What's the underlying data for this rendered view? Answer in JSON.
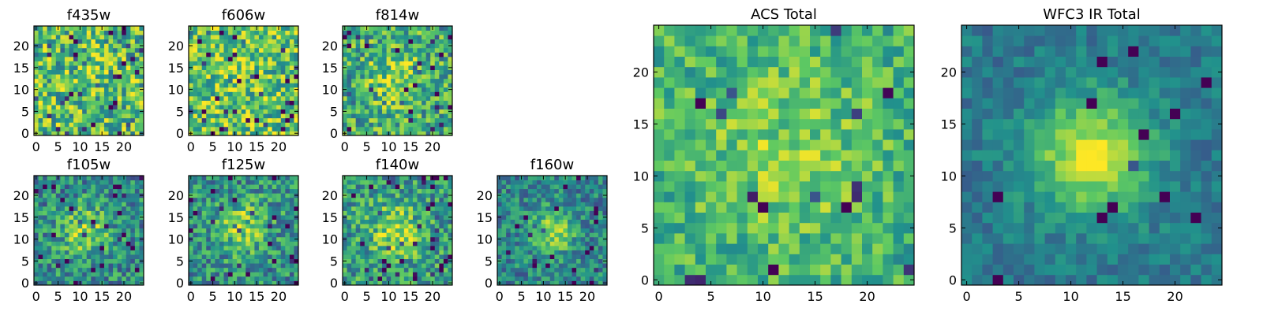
{
  "figure": {
    "background": "#ffffff",
    "colormap": "viridis",
    "colormap_stops": [
      "#440154",
      "#3b528b",
      "#21918c",
      "#5ec962",
      "#fde725"
    ]
  },
  "chart_data": [
    {
      "type": "heatmap",
      "title": "f435w",
      "grid": [
        25,
        25
      ],
      "xlim": [
        0,
        24
      ],
      "ylim": [
        0,
        24
      ],
      "xticks": [
        "0",
        "5",
        "10",
        "15",
        "20"
      ],
      "yticks": [
        "0",
        "5",
        "10",
        "15",
        "20"
      ],
      "intensity": {
        "level": 0.68,
        "noise": 0.32,
        "center": [
          12,
          12
        ],
        "peak": 0.05,
        "spread": 5,
        "dark_pixel_rate": 0.06
      }
    },
    {
      "type": "heatmap",
      "title": "f606w",
      "grid": [
        25,
        25
      ],
      "xlim": [
        0,
        24
      ],
      "ylim": [
        0,
        24
      ],
      "xticks": [
        "0",
        "5",
        "10",
        "15",
        "20"
      ],
      "yticks": [
        "0",
        "5",
        "10",
        "15",
        "20"
      ],
      "intensity": {
        "level": 0.72,
        "noise": 0.3,
        "center": [
          12,
          12
        ],
        "peak": 0.05,
        "spread": 5,
        "dark_pixel_rate": 0.07
      }
    },
    {
      "type": "heatmap",
      "title": "f814w",
      "grid": [
        25,
        25
      ],
      "xlim": [
        0,
        24
      ],
      "ylim": [
        0,
        24
      ],
      "xticks": [
        "0",
        "5",
        "10",
        "15",
        "20"
      ],
      "yticks": [
        "0",
        "5",
        "10",
        "15",
        "20"
      ],
      "intensity": {
        "level": 0.6,
        "noise": 0.3,
        "center": [
          12,
          13
        ],
        "peak": 0.22,
        "spread": 5,
        "dark_pixel_rate": 0.05
      }
    },
    {
      "type": "heatmap",
      "title": "f105w",
      "grid": [
        25,
        25
      ],
      "xlim": [
        0,
        24
      ],
      "ylim": [
        0,
        24
      ],
      "xticks": [
        "0",
        "5",
        "10",
        "15",
        "20"
      ],
      "yticks": [
        "0",
        "5",
        "10",
        "15",
        "20"
      ],
      "intensity": {
        "level": 0.48,
        "noise": 0.26,
        "center": [
          11,
          12
        ],
        "peak": 0.35,
        "spread": 4,
        "dark_pixel_rate": 0.05
      }
    },
    {
      "type": "heatmap",
      "title": "f125w",
      "grid": [
        25,
        25
      ],
      "xlim": [
        0,
        24
      ],
      "ylim": [
        0,
        24
      ],
      "xticks": [
        "0",
        "5",
        "10",
        "15",
        "20"
      ],
      "yticks": [
        "0",
        "5",
        "10",
        "15",
        "20"
      ],
      "intensity": {
        "level": 0.5,
        "noise": 0.26,
        "center": [
          12,
          13
        ],
        "peak": 0.32,
        "spread": 4,
        "dark_pixel_rate": 0.05
      }
    },
    {
      "type": "heatmap",
      "title": "f140w",
      "grid": [
        25,
        25
      ],
      "xlim": [
        0,
        24
      ],
      "ylim": [
        0,
        24
      ],
      "xticks": [
        "0",
        "5",
        "10",
        "15",
        "20"
      ],
      "yticks": [
        "0",
        "5",
        "10",
        "15",
        "20"
      ],
      "intensity": {
        "level": 0.55,
        "noise": 0.26,
        "center": [
          12,
          12
        ],
        "peak": 0.33,
        "spread": 4,
        "dark_pixel_rate": 0.05
      }
    },
    {
      "type": "heatmap",
      "title": "f160w",
      "grid": [
        25,
        25
      ],
      "xlim": [
        0,
        24
      ],
      "ylim": [
        0,
        24
      ],
      "xticks": [
        "0",
        "5",
        "10",
        "15",
        "20"
      ],
      "yticks": [
        "0",
        "5",
        "10",
        "15",
        "20"
      ],
      "intensity": {
        "level": 0.45,
        "noise": 0.22,
        "center": [
          12,
          12
        ],
        "peak": 0.42,
        "spread": 3.5,
        "dark_pixel_rate": 0.05
      }
    },
    {
      "type": "heatmap",
      "title": "ACS Total",
      "grid": [
        25,
        25
      ],
      "xlim": [
        0,
        24
      ],
      "ylim": [
        0,
        24
      ],
      "xticks": [
        "0",
        "5",
        "10",
        "15",
        "20"
      ],
      "yticks": [
        "0",
        "5",
        "10",
        "15",
        "20"
      ],
      "intensity": {
        "level": 0.64,
        "noise": 0.2,
        "center": [
          12,
          12
        ],
        "peak": 0.16,
        "spread": 6,
        "dark_pixel_rate": 0.04
      }
    },
    {
      "type": "heatmap",
      "title": "WFC3 IR Total",
      "grid": [
        25,
        25
      ],
      "xlim": [
        0,
        24
      ],
      "ylim": [
        0,
        24
      ],
      "xticks": [
        "0",
        "5",
        "10",
        "15",
        "20"
      ],
      "yticks": [
        "0",
        "5",
        "10",
        "15",
        "20"
      ],
      "intensity": {
        "level": 0.4,
        "noise": 0.12,
        "center": [
          12,
          12
        ],
        "peak": 0.55,
        "spread": 4,
        "dark_pixel_rate": 0.02
      }
    }
  ]
}
